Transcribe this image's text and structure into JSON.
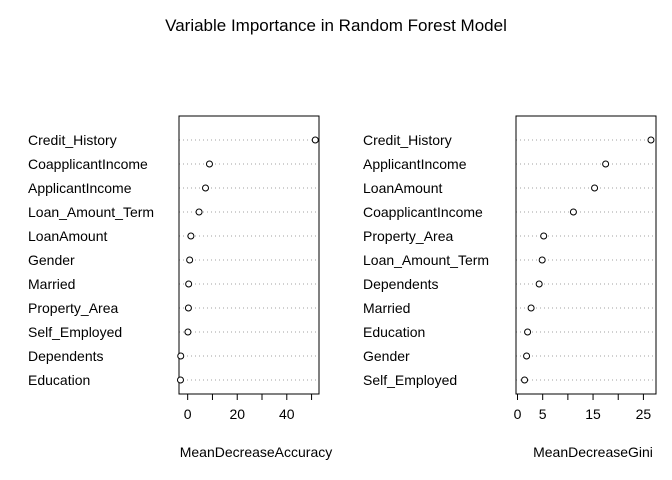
{
  "title": "Variable Importance in Random Forest Model",
  "chart_data": [
    {
      "type": "dotchart",
      "xlabel": "MeanDecreaseAccuracy",
      "xlim": [
        -3.5,
        53
      ],
      "xticks": [
        0,
        20,
        40
      ],
      "categories": [
        "Credit_History",
        "CoapplicantIncome",
        "ApplicantIncome",
        "Loan_Amount_Term",
        "LoanAmount",
        "Gender",
        "Married",
        "Property_Area",
        "Self_Employed",
        "Dependents",
        "Education"
      ],
      "values": [
        51.5,
        8.8,
        7.2,
        4.6,
        1.3,
        0.8,
        0.4,
        0.3,
        0.1,
        -2.8,
        -2.9
      ],
      "grid": "horizontal dotted"
    },
    {
      "type": "dotchart",
      "xlabel": "MeanDecreaseGini",
      "xlim": [
        -0.3,
        27.5
      ],
      "xticks": [
        0,
        5,
        15,
        25
      ],
      "categories": [
        "Credit_History",
        "ApplicantIncome",
        "LoanAmount",
        "CoapplicantIncome",
        "Property_Area",
        "Loan_Amount_Term",
        "Dependents",
        "Married",
        "Education",
        "Gender",
        "Self_Employed"
      ],
      "values": [
        26.5,
        17.5,
        15.3,
        11.1,
        5.2,
        4.9,
        4.3,
        2.7,
        2.0,
        1.8,
        1.4
      ],
      "grid": "horizontal dotted"
    }
  ]
}
